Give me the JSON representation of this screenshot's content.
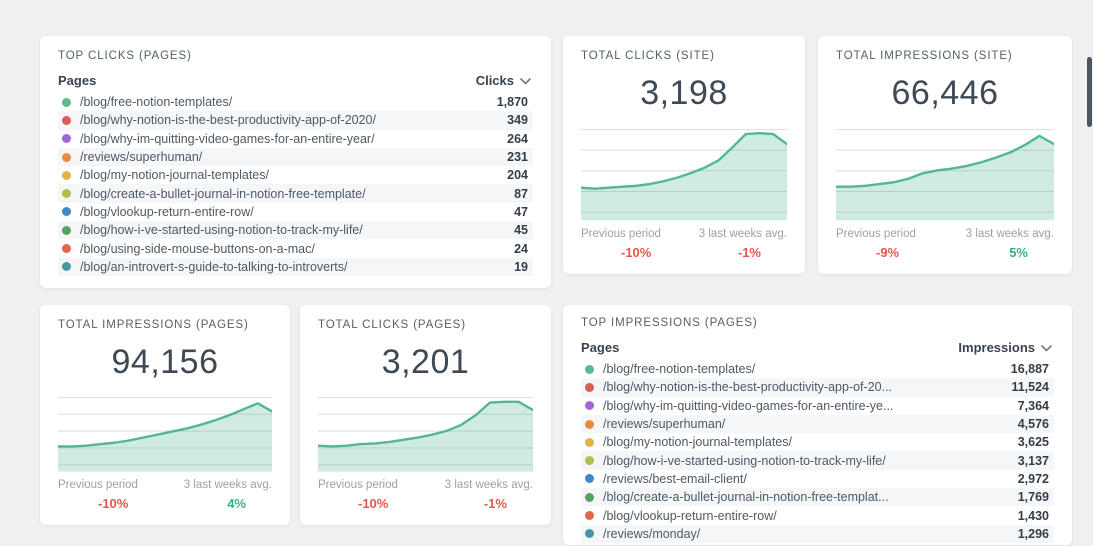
{
  "palette": {
    "dot_colors": [
      "#5cb98d",
      "#d85c54",
      "#9d68d3",
      "#e98a41",
      "#dfb347",
      "#b3bd4a",
      "#3f88c5",
      "#57a25f",
      "#e2654b",
      "#4697a1"
    ],
    "chart_line": "#53b694",
    "chart_fill_rgba": "rgba(86,182,149,0.28)",
    "gridline": "#d9dcde",
    "negative": "#e8554a",
    "positive": "#36b286"
  },
  "labels": {
    "previous": "Previous period",
    "avg": "3 last weeks avg."
  },
  "cards": {
    "top_clicks_pages": {
      "title": "TOP CLICKS (PAGES)",
      "col_pages": "Pages",
      "col_value": "Clicks",
      "sort_icon": "chevron-down-icon",
      "rows": [
        {
          "page": "/blog/free-notion-templates/",
          "value": "1,870"
        },
        {
          "page": "/blog/why-notion-is-the-best-productivity-app-of-2020/",
          "value": "349"
        },
        {
          "page": "/blog/why-im-quitting-video-games-for-an-entire-year/",
          "value": "264"
        },
        {
          "page": "/reviews/superhuman/",
          "value": "231"
        },
        {
          "page": "/blog/my-notion-journal-templates/",
          "value": "204"
        },
        {
          "page": "/blog/create-a-bullet-journal-in-notion-free-template/",
          "value": "87"
        },
        {
          "page": "/blog/vlookup-return-entire-row/",
          "value": "47"
        },
        {
          "page": "/blog/how-i-ve-started-using-notion-to-track-my-life/",
          "value": "45"
        },
        {
          "page": "/blog/using-side-mouse-buttons-on-a-mac/",
          "value": "24"
        },
        {
          "page": "/blog/an-introvert-s-guide-to-talking-to-introverts/",
          "value": "19"
        }
      ]
    },
    "total_clicks_site": {
      "title": "TOTAL CLICKS (SITE)",
      "total": "3,198",
      "previous_change": "-10%",
      "previous_trend": "down",
      "avg_change": "-1%",
      "avg_trend": "down",
      "chart": {
        "type": "area",
        "values_pct": [
          36,
          35,
          36,
          37,
          38,
          40,
          43,
          47,
          52,
          58,
          66,
          80,
          95,
          96,
          95,
          84
        ]
      }
    },
    "total_impressions_site": {
      "title": "TOTAL IMPRESSIONS (SITE)",
      "total": "66,446",
      "previous_change": "-9%",
      "previous_trend": "down",
      "avg_change": "5%",
      "avg_trend": "up",
      "chart": {
        "type": "area",
        "values_pct": [
          37,
          37,
          38,
          40,
          42,
          46,
          52,
          55,
          57,
          60,
          64,
          69,
          75,
          83,
          93,
          84
        ]
      }
    },
    "total_impressions_pages": {
      "title": "TOTAL IMPRESSIONS (PAGES)",
      "total": "94,156",
      "previous_change": "-10%",
      "previous_trend": "down",
      "avg_change": "4%",
      "avg_trend": "up",
      "chart": {
        "type": "area",
        "values_pct": [
          34,
          34,
          35,
          37,
          39,
          42,
          46,
          50,
          54,
          58,
          63,
          69,
          76,
          84,
          92,
          81
        ]
      }
    },
    "total_clicks_pages": {
      "title": "TOTAL CLICKS (PAGES)",
      "total": "3,201",
      "previous_change": "-10%",
      "previous_trend": "down",
      "avg_change": "-1%",
      "avg_trend": "down",
      "chart": {
        "type": "area",
        "values_pct": [
          35,
          34,
          35,
          37,
          38,
          40,
          43,
          46,
          50,
          55,
          63,
          76,
          93,
          94,
          94,
          83
        ]
      }
    },
    "top_impressions_pages": {
      "title": "TOP IMPRESSIONS (PAGES)",
      "col_pages": "Pages",
      "col_value": "Impressions",
      "sort_icon": "chevron-down-icon",
      "rows": [
        {
          "page": "/blog/free-notion-templates/",
          "value": "16,887"
        },
        {
          "page": "/blog/why-notion-is-the-best-productivity-app-of-20...",
          "value": "11,524"
        },
        {
          "page": "/blog/why-im-quitting-video-games-for-an-entire-ye...",
          "value": "7,364"
        },
        {
          "page": "/reviews/superhuman/",
          "value": "4,576"
        },
        {
          "page": "/blog/my-notion-journal-templates/",
          "value": "3,625"
        },
        {
          "page": "/blog/how-i-ve-started-using-notion-to-track-my-life/",
          "value": "3,137"
        },
        {
          "page": "/reviews/best-email-client/",
          "value": "2,972"
        },
        {
          "page": "/blog/create-a-bullet-journal-in-notion-free-templat...",
          "value": "1,769"
        },
        {
          "page": "/blog/vlookup-return-entire-row/",
          "value": "1,430"
        },
        {
          "page": "/reviews/monday/",
          "value": "1,296"
        }
      ]
    }
  }
}
